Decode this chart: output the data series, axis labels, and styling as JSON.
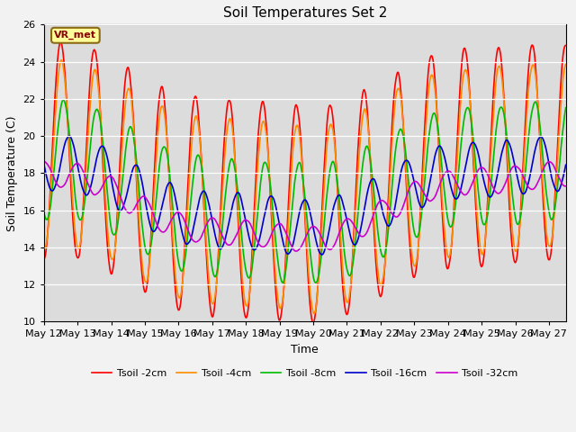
{
  "title": "Soil Temperatures Set 2",
  "xlabel": "Time",
  "ylabel": "Soil Temperature (C)",
  "ylim": [
    10,
    26
  ],
  "x_tick_labels": [
    "May 12",
    "May 13",
    "May 14",
    "May 15",
    "May 16",
    "May 17",
    "May 18",
    "May 19",
    "May 20",
    "May 21",
    "May 22",
    "May 23",
    "May 24",
    "May 25",
    "May 26",
    "May 27"
  ],
  "annotation_text": "VR_met",
  "annotation_color": "#8B0000",
  "annotation_bg": "#FFFF99",
  "annotation_edge": "#8B6914",
  "bg_color": "#DCDCDC",
  "fig_color": "#F2F2F2",
  "grid_color": "#FFFFFF",
  "series": [
    {
      "label": "Tsoil -2cm",
      "color": "#FF0000",
      "linewidth": 1.2
    },
    {
      "label": "Tsoil -4cm",
      "color": "#FF8C00",
      "linewidth": 1.2
    },
    {
      "label": "Tsoil -8cm",
      "color": "#00BB00",
      "linewidth": 1.2
    },
    {
      "label": "Tsoil -16cm",
      "color": "#0000CC",
      "linewidth": 1.2
    },
    {
      "label": "Tsoil -32cm",
      "color": "#CC00CC",
      "linewidth": 1.2
    }
  ]
}
